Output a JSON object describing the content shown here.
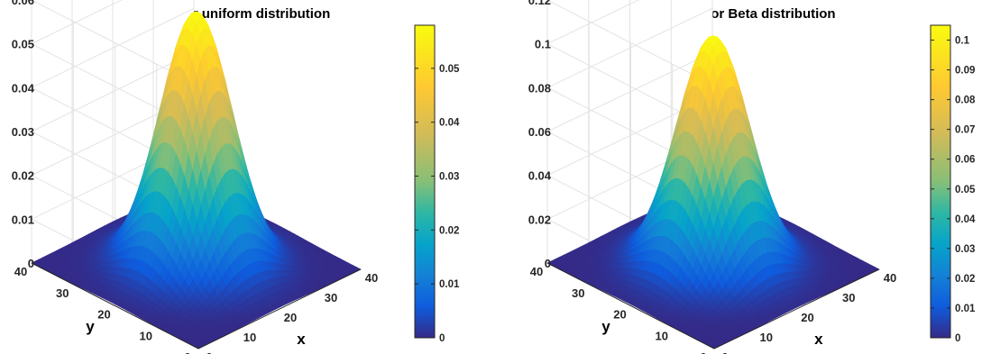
{
  "chart_data": [
    {
      "type": "surface",
      "title": "mean value for uniform distribution",
      "xlabel": "x",
      "ylabel": "y",
      "xlim": [
        0,
        40
      ],
      "ylim": [
        0,
        40
      ],
      "zlim": [
        0,
        0.06
      ],
      "x_ticks": [
        "0",
        "10",
        "20",
        "30",
        "40"
      ],
      "y_ticks": [
        "0",
        "10",
        "20",
        "30",
        "40"
      ],
      "z_ticks": [
        "0",
        "0.01",
        "0.02",
        "0.03",
        "0.04",
        "0.05",
        "0.06"
      ],
      "peak_value": 0.058,
      "peak_location": [
        20,
        20
      ],
      "colormap": "parula",
      "colorbar": {
        "range": [
          0,
          0.058
        ],
        "ticks": [
          "0",
          "0.01",
          "0.02",
          "0.03",
          "0.04",
          "0.05"
        ]
      },
      "grid": true
    },
    {
      "type": "surface",
      "title": "mean value for Beta distribution",
      "xlabel": "x",
      "ylabel": "y",
      "xlim": [
        0,
        40
      ],
      "ylim": [
        0,
        40
      ],
      "zlim": [
        0,
        0.12
      ],
      "x_ticks": [
        "0",
        "10",
        "20",
        "30",
        "40"
      ],
      "y_ticks": [
        "0",
        "10",
        "20",
        "30",
        "40"
      ],
      "z_ticks": [
        "0",
        "0.02",
        "0.04",
        "0.06",
        "0.08",
        "0.1",
        "0.12"
      ],
      "peak_value": 0.105,
      "peak_location": [
        20,
        20
      ],
      "colormap": "parula",
      "colorbar": {
        "range": [
          0,
          0.105
        ],
        "ticks": [
          "0",
          "0.01",
          "0.02",
          "0.03",
          "0.04",
          "0.05",
          "0.06",
          "0.07",
          "0.08",
          "0.09",
          "0.1"
        ]
      },
      "grid": true
    }
  ]
}
